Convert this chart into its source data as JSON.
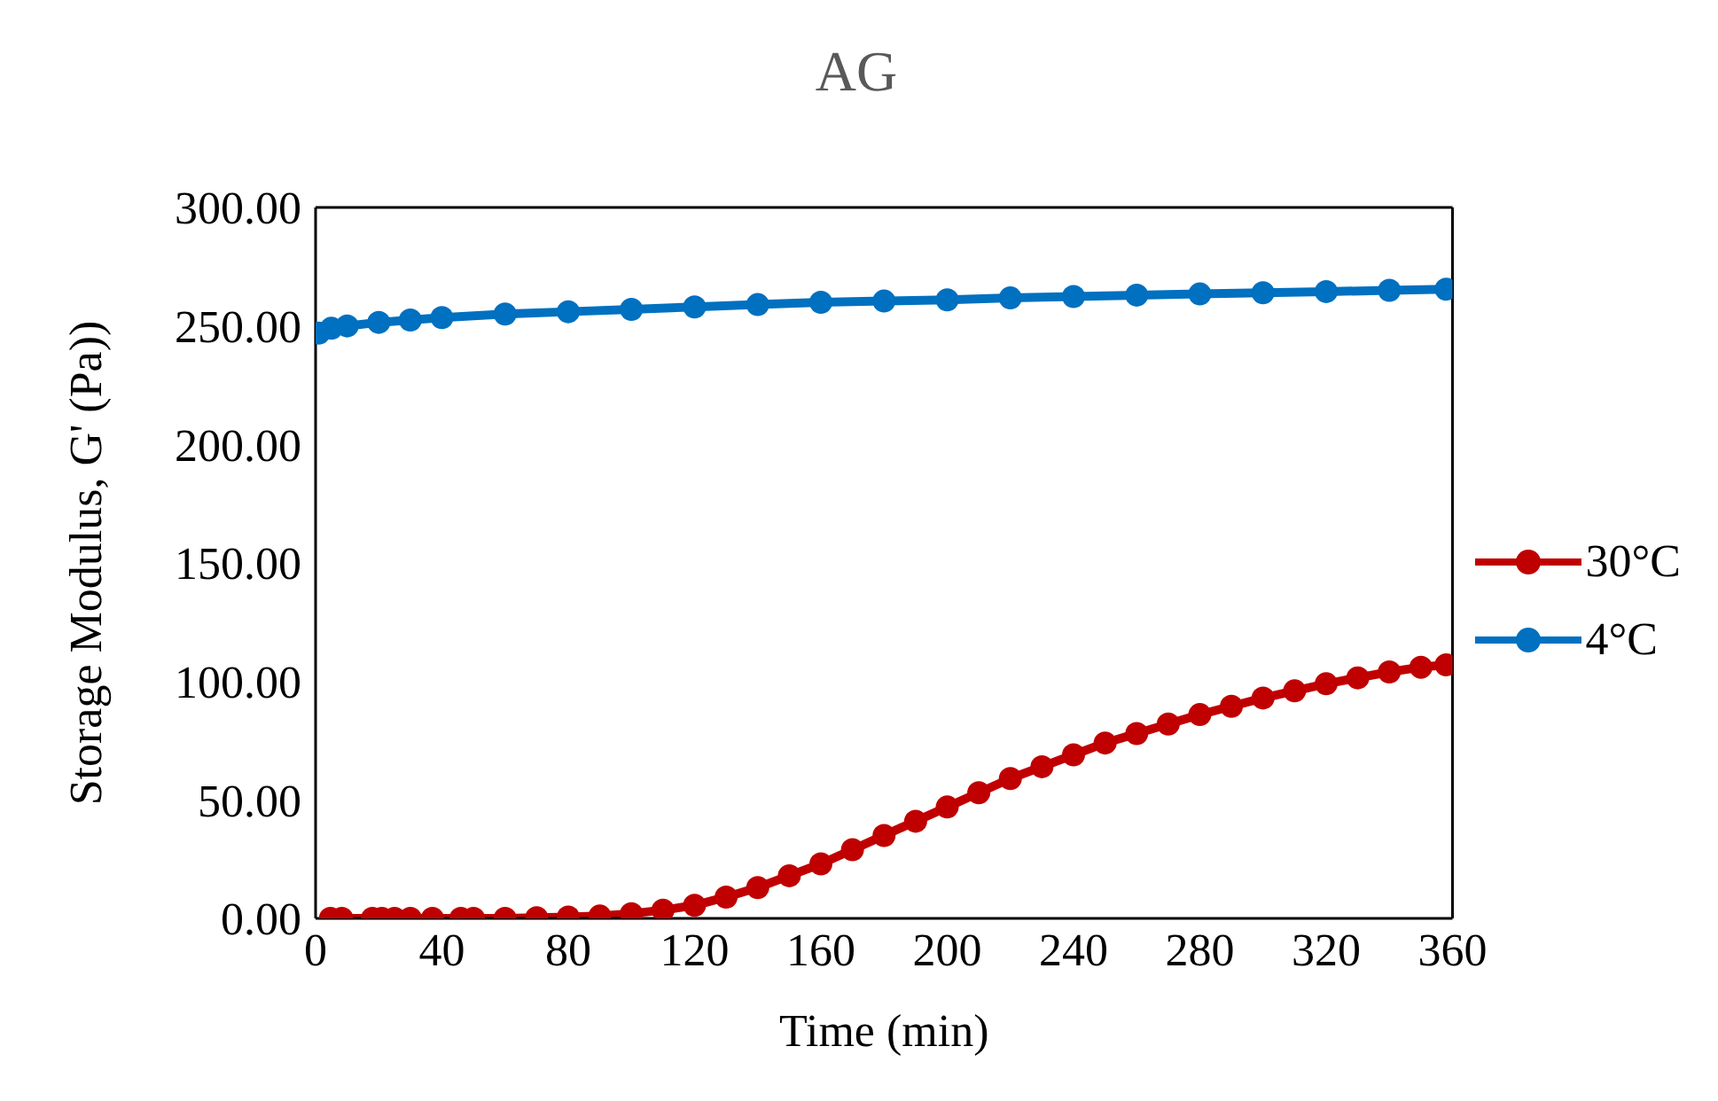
{
  "chart_data": {
    "type": "line",
    "title": "AG",
    "xlabel": "Time (min)",
    "ylabel": "Storage Modulus, G' (Pa))",
    "series": [
      {
        "name": "30°C",
        "color": "#c00000",
        "x": [
          4.7,
          8.3,
          18,
          21,
          25,
          30,
          37,
          46,
          50,
          60,
          70,
          80,
          90,
          100,
          110,
          120,
          130,
          140,
          150,
          160,
          170,
          180,
          190,
          200,
          210,
          220,
          230,
          240,
          250,
          260,
          270,
          280,
          290,
          300,
          310,
          320,
          330,
          340,
          350,
          358
        ],
        "values": [
          0,
          0,
          0,
          0,
          0,
          0,
          0,
          0,
          0,
          0,
          0.3,
          0.6,
          1,
          2,
          3.5,
          5.5,
          9,
          13,
          18,
          23,
          29,
          35,
          41,
          47,
          53,
          59,
          64,
          69,
          74,
          78,
          82,
          86,
          89.5,
          93,
          96,
          99,
          101.5,
          104,
          106,
          107
        ]
      },
      {
        "name": "4°C",
        "color": "#0070c0",
        "x": [
          1,
          5,
          10,
          20,
          30,
          40,
          60,
          80,
          100,
          120,
          140,
          160,
          180,
          200,
          220,
          240,
          260,
          280,
          300,
          320,
          340,
          358
        ],
        "values": [
          247,
          249,
          250,
          251.5,
          252.5,
          253.5,
          255,
          256,
          257,
          258,
          259,
          260,
          260.5,
          261,
          261.8,
          262.4,
          263,
          263.5,
          264,
          264.5,
          265,
          265.5
        ]
      }
    ],
    "xlim": [
      0,
      360
    ],
    "xticks": [
      0,
      40,
      80,
      120,
      160,
      200,
      240,
      280,
      320,
      360
    ],
    "ylim": [
      0,
      300
    ],
    "yticks": [
      {
        "value": 0,
        "label": "0.00"
      },
      {
        "value": 50,
        "label": "50.00"
      },
      {
        "value": 100,
        "label": "100.00"
      },
      {
        "value": 150,
        "label": "150.00"
      },
      {
        "value": 200,
        "label": "200.00"
      },
      {
        "value": 250,
        "label": "250.00"
      },
      {
        "value": 300,
        "label": "300.00"
      }
    ],
    "grid": false,
    "legend": "right",
    "marker": "circle",
    "line_style": "solid"
  }
}
